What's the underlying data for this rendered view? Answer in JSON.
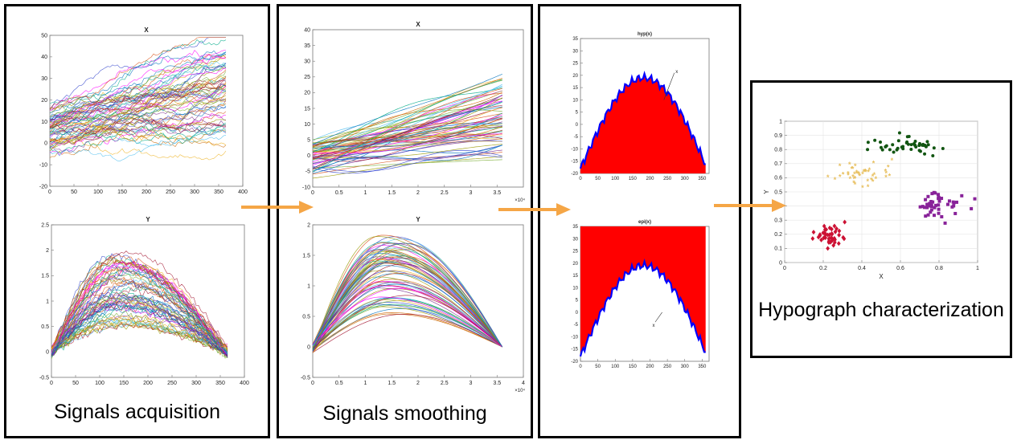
{
  "captions": {
    "acquisition": "Signals acquisition",
    "smoothing": "Signals smoothing",
    "hypograph": "Hypograph characterization"
  },
  "colors": {
    "arrow": "#f5a646",
    "fill": "#ff0000",
    "curve": "#0000ff",
    "cluster1": "#cc1133",
    "cluster2": "#e8c060",
    "cluster3": "#882299",
    "cluster4": "#115511"
  },
  "chart_data": [
    {
      "id": "raw_x",
      "type": "line",
      "title": "X",
      "xlim": [
        0,
        400
      ],
      "ylim": [
        -20,
        50
      ],
      "xticks": [
        "0",
        "50",
        "100",
        "150",
        "200",
        "250",
        "300",
        "350",
        "400"
      ],
      "yticks": [
        "-20",
        "-10",
        "0",
        "10",
        "20",
        "30",
        "40",
        "50"
      ]
    },
    {
      "id": "raw_y",
      "type": "line",
      "title": "Y",
      "xlim": [
        0,
        400
      ],
      "ylim": [
        -0.5,
        2.5
      ],
      "xticks": [
        "0",
        "50",
        "100",
        "150",
        "200",
        "250",
        "300",
        "350",
        "400"
      ],
      "yticks": [
        "-0.5",
        "0",
        "0.5",
        "1",
        "1.5",
        "2",
        "2.5"
      ]
    },
    {
      "id": "smooth_x",
      "type": "line",
      "title": "X",
      "xlim": [
        0,
        4
      ],
      "ylim": [
        -10,
        40
      ],
      "xmultiplier": "×10⁴",
      "xticks": [
        "0",
        "0.5",
        "1",
        "1.5",
        "2",
        "2.5",
        "3",
        "3.5"
      ],
      "yticks": [
        "-10",
        "-5",
        "0",
        "5",
        "10",
        "15",
        "20",
        "25",
        "30",
        "35",
        "40"
      ]
    },
    {
      "id": "smooth_y",
      "type": "line",
      "title": "Y",
      "xlim": [
        0,
        4
      ],
      "ylim": [
        -0.5,
        2
      ],
      "xmultiplier": "×10⁴",
      "xticks": [
        "0",
        "0.5",
        "1",
        "1.5",
        "2",
        "2.5",
        "3",
        "3.5",
        "4"
      ],
      "yticks": [
        "-0.5",
        "0",
        "0.5",
        "1",
        "1.5",
        "2"
      ]
    },
    {
      "id": "hyp",
      "type": "area",
      "title": "hyp(x)",
      "annotation": "x",
      "xlim": [
        0,
        370
      ],
      "ylim": [
        -20,
        35
      ],
      "xticks": [
        "0",
        "50",
        "100",
        "150",
        "200",
        "250",
        "300",
        "350"
      ],
      "yticks": [
        "-20",
        "-15",
        "-10",
        "-5",
        "0",
        "5",
        "10",
        "15",
        "20",
        "25",
        "30",
        "35"
      ]
    },
    {
      "id": "epi",
      "type": "area",
      "title": "epi(x)",
      "annotation": "x",
      "xlim": [
        0,
        370
      ],
      "ylim": [
        -20,
        35
      ],
      "xticks": [
        "0",
        "50",
        "100",
        "150",
        "200",
        "250",
        "300",
        "350"
      ],
      "yticks": [
        "-20",
        "-15",
        "-10",
        "-5",
        "0",
        "5",
        "10",
        "15",
        "20",
        "25",
        "30",
        "35"
      ]
    },
    {
      "id": "scatter",
      "type": "scatter",
      "xlabel": "X",
      "ylabel": "Y",
      "xlim": [
        0,
        1
      ],
      "ylim": [
        0,
        1
      ],
      "xticks": [
        "0",
        "0.2",
        "0.4",
        "0.6",
        "0.8",
        "1"
      ],
      "yticks": [
        "0",
        "0.1",
        "0.2",
        "0.3",
        "0.4",
        "0.5",
        "0.6",
        "0.7",
        "0.8",
        "0.9",
        "1"
      ]
    }
  ]
}
